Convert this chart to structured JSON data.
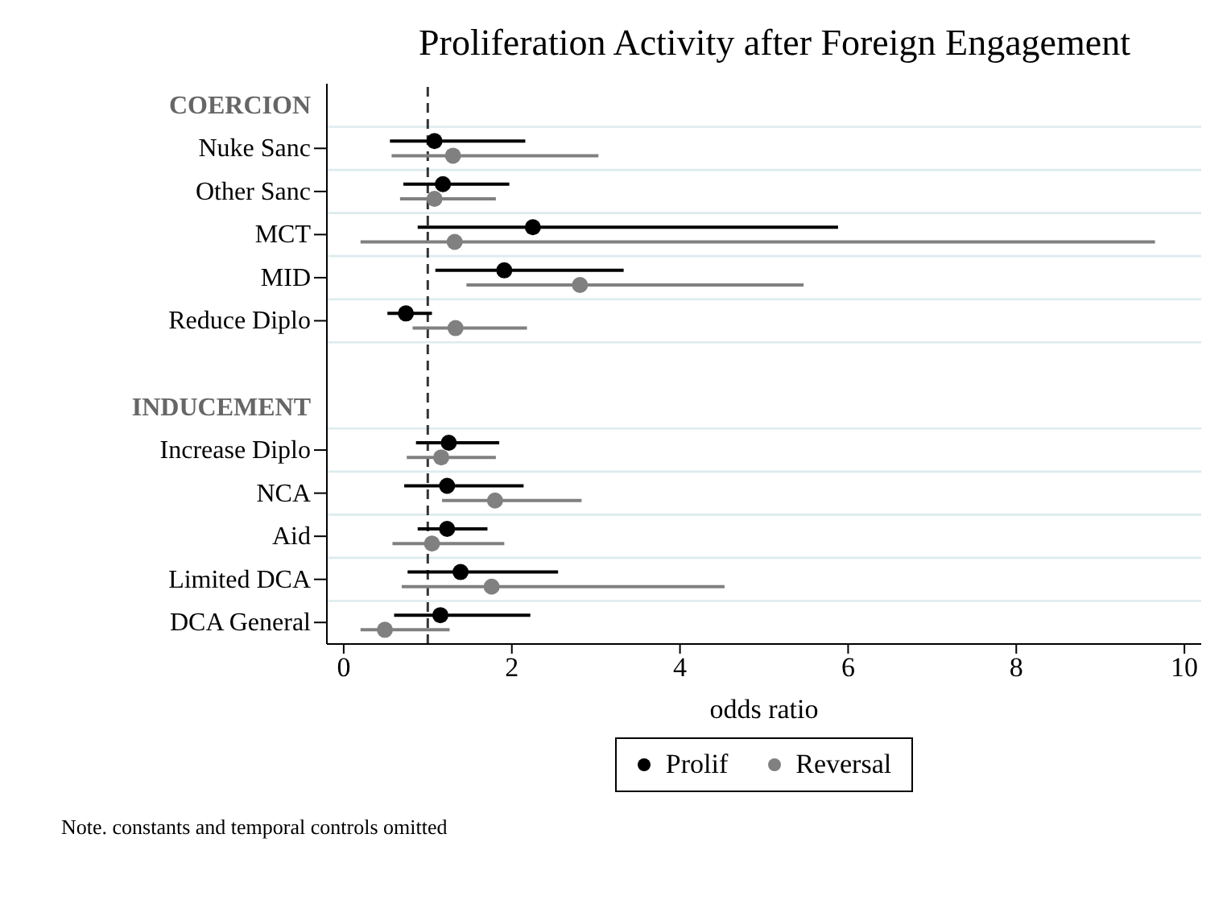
{
  "chart_data": {
    "type": "scatter",
    "orientation": "horizontal",
    "title": "Proliferation Activity after Foreign Engagement",
    "xlabel": "odds ratio",
    "categories": [
      "COERCION",
      "Nuke Sanc",
      "Other Sanc",
      "MCT",
      "MID",
      "Reduce Diplo",
      null,
      "INDUCEMENT",
      "Increase Diplo",
      "NCA",
      "Aid",
      "Limited DCA",
      "DCA General"
    ],
    "series": [
      {
        "name": "Prolif",
        "color": "#000000",
        "values": [
          null,
          1.08,
          1.18,
          2.25,
          1.91,
          0.74,
          null,
          null,
          1.25,
          1.23,
          1.23,
          1.39,
          1.15
        ],
        "errors": [
          null,
          [
            0.55,
            2.16
          ],
          [
            0.71,
            1.97
          ],
          [
            0.88,
            5.88
          ],
          [
            1.09,
            3.33
          ],
          [
            0.52,
            1.05
          ],
          null,
          null,
          [
            0.86,
            1.85
          ],
          [
            0.72,
            2.14
          ],
          [
            0.88,
            1.71
          ],
          [
            0.76,
            2.55
          ],
          [
            0.6,
            2.22
          ]
        ]
      },
      {
        "name": "Reversal",
        "color": "#808080",
        "values": [
          null,
          1.3,
          1.08,
          1.32,
          2.81,
          1.33,
          null,
          null,
          1.16,
          1.8,
          1.05,
          1.76,
          0.49
        ],
        "errors": [
          null,
          [
            0.57,
            3.03
          ],
          [
            0.67,
            1.81
          ],
          [
            0.2,
            9.65
          ],
          [
            1.46,
            5.47
          ],
          [
            0.82,
            2.18
          ],
          null,
          null,
          [
            0.75,
            1.81
          ],
          [
            1.17,
            2.83
          ],
          [
            0.58,
            1.91
          ],
          [
            0.69,
            4.53
          ],
          [
            0.2,
            1.26
          ]
        ]
      }
    ],
    "xlim": [
      -0.2,
      10.2
    ],
    "xticks": [
      0,
      2,
      4,
      6,
      8,
      10
    ],
    "ref_lines": [
      {
        "axis": "x",
        "value": 1,
        "line_style": "dashed",
        "color": "#333333"
      }
    ],
    "grid": true,
    "legend": "bottom",
    "marker": "circle",
    "annotations": [
      "Note. constants and temporal controls omitted"
    ]
  }
}
